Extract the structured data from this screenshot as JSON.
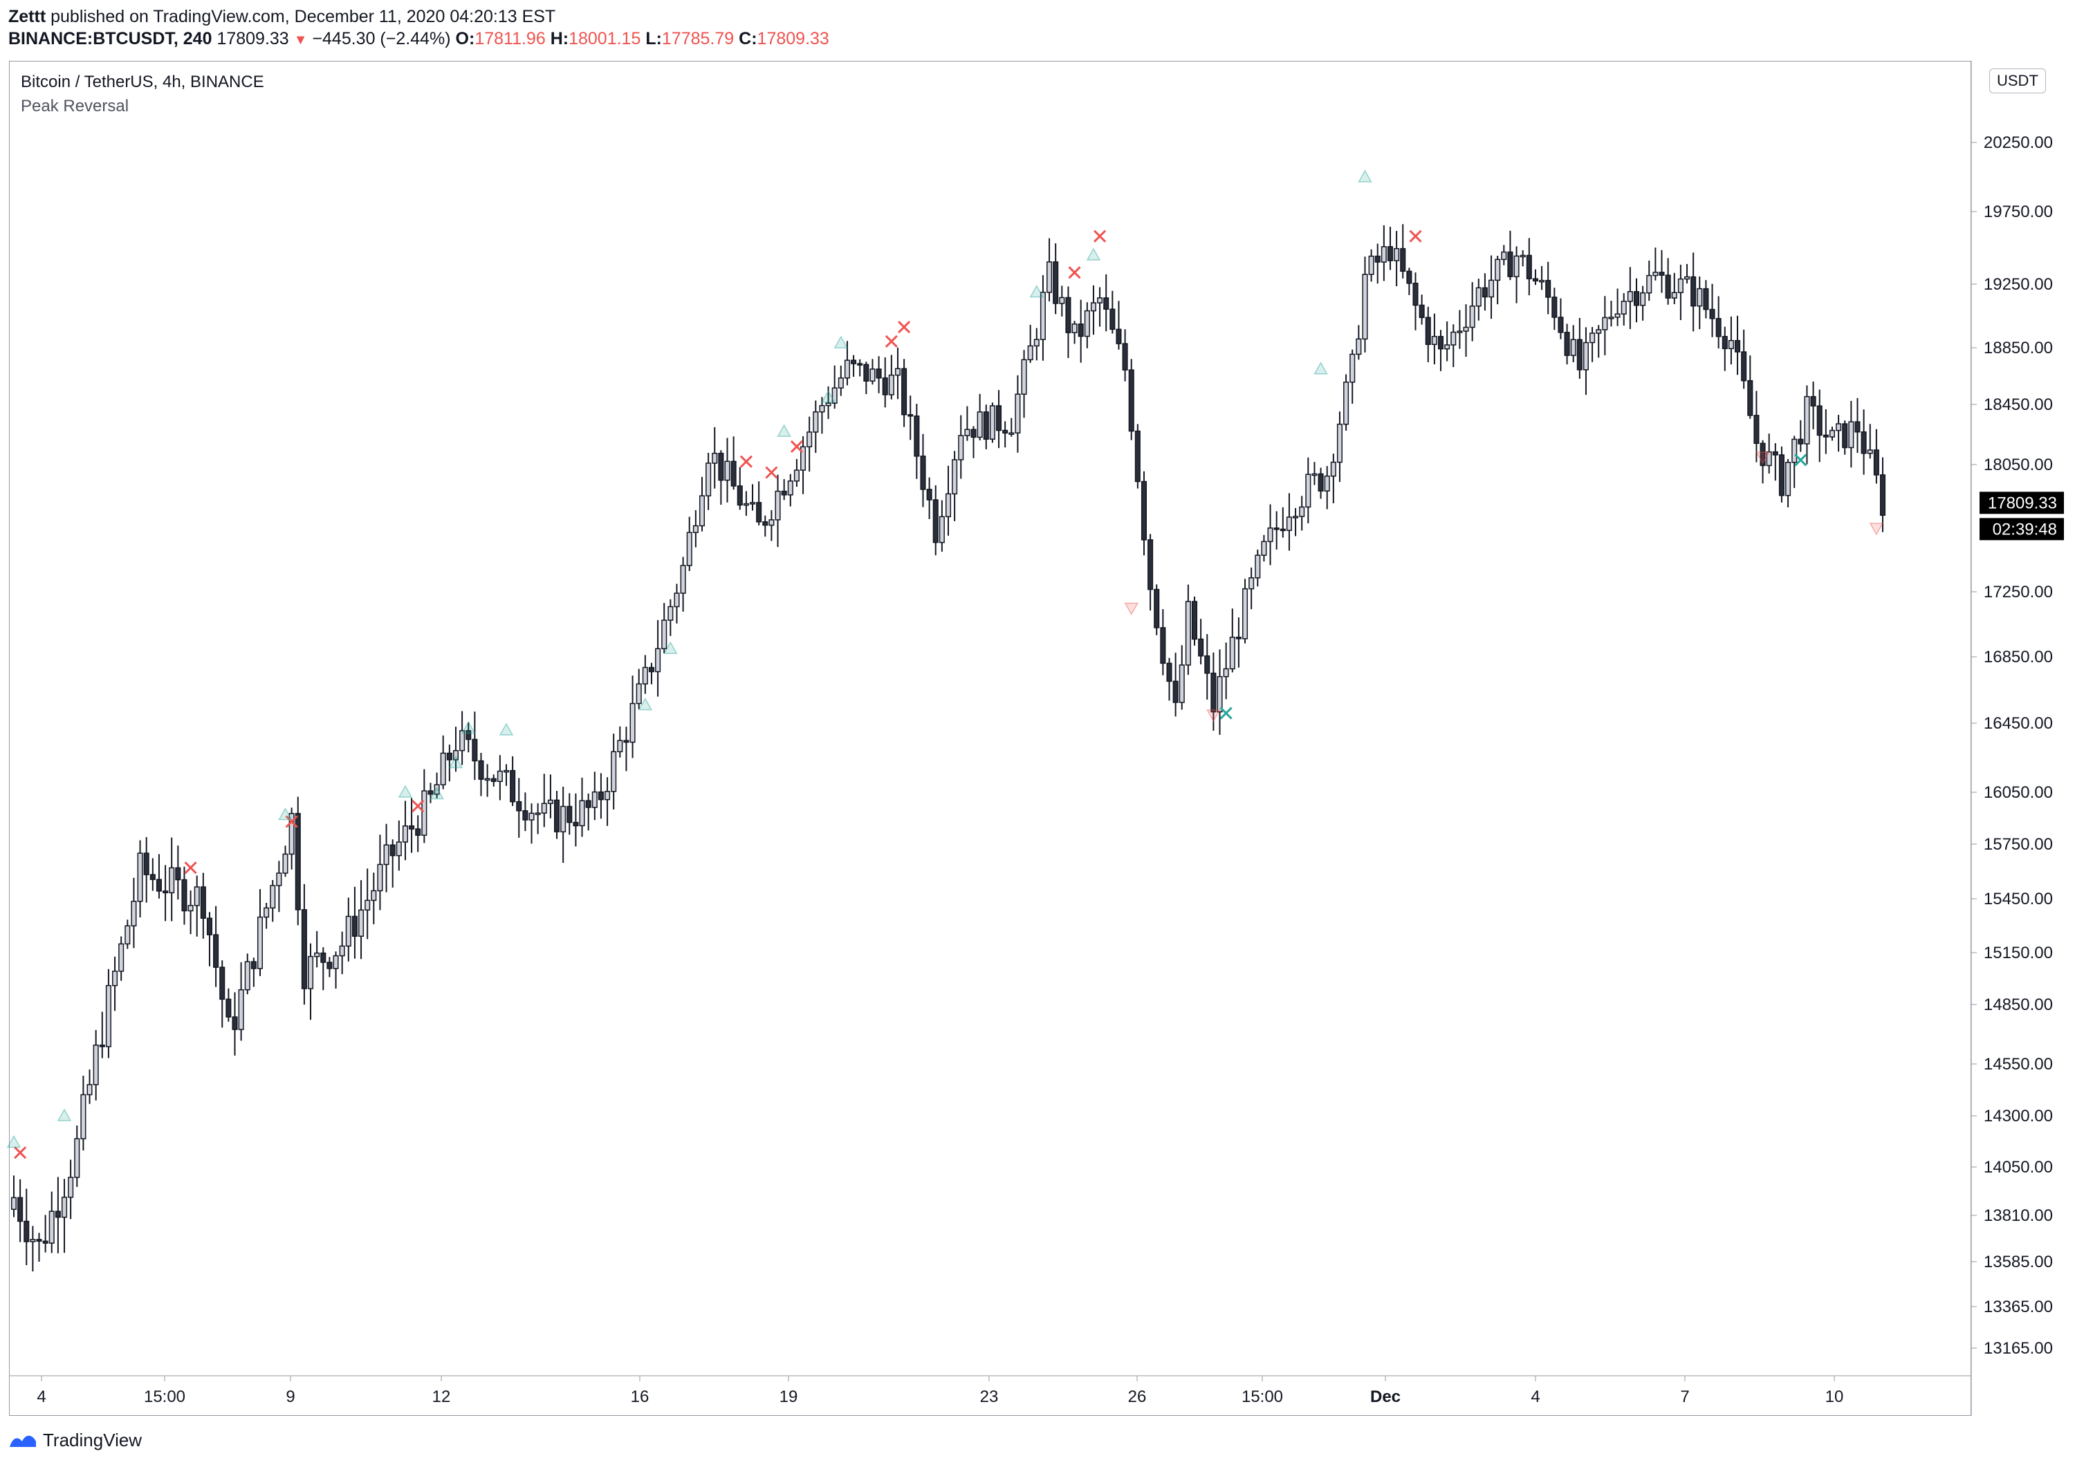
{
  "header": {
    "author": "Zettt",
    "published": "published on TradingView.com, December 11, 2020 04:20:13 EST",
    "symbol": "BINANCE:BTCUSDT, 240",
    "last": "17809.33",
    "change_arrow": "▼",
    "change": "−445.30 (−2.44%)",
    "o_label": "O:",
    "o": "17811.96",
    "h_label": "H:",
    "h": "18001.15",
    "l_label": "L:",
    "l": "17785.79",
    "c_label": "C:",
    "c": "17809.33"
  },
  "chart_title": "Bitcoin / TetherUS, 4h, BINANCE",
  "indicator": "Peak Reversal",
  "currency_button": "USDT",
  "price_label": "17809.33",
  "countdown_label": "02:39:48",
  "footer_brand": "TradingView",
  "colors": {
    "up_body": "#d1d4dc",
    "down_body": "#2a2e39",
    "wick": "#131722",
    "marker_green": "#26a69a",
    "marker_red": "#ef5350"
  },
  "chart_data": {
    "type": "candlestick",
    "title": "Bitcoin / TetherUS, 4h, BINANCE",
    "y_ticks": [
      "20250.00",
      "19750.00",
      "19250.00",
      "18850.00",
      "18450.00",
      "18050.00",
      "17250.00",
      "16850.00",
      "16450.00",
      "16050.00",
      "15750.00",
      "15450.00",
      "15150.00",
      "14850.00",
      "14550.00",
      "14300.00",
      "14050.00",
      "13810.00",
      "13585.00",
      "13365.00",
      "13165.00"
    ],
    "x_ticks": [
      "4",
      "15:00",
      "9",
      "12",
      "16",
      "19",
      "23",
      "26",
      "15:00",
      "Dec",
      "4",
      "7",
      "10"
    ],
    "last_price": 17809.33,
    "anchor_points": [
      {
        "i": 0,
        "p": 13900
      },
      {
        "i": 4,
        "p": 13650
      },
      {
        "i": 10,
        "p": 14150
      },
      {
        "i": 20,
        "p": 15600
      },
      {
        "i": 26,
        "p": 15500
      },
      {
        "i": 30,
        "p": 15450
      },
      {
        "i": 34,
        "p": 14700
      },
      {
        "i": 36,
        "p": 14900
      },
      {
        "i": 40,
        "p": 15400
      },
      {
        "i": 44,
        "p": 15900
      },
      {
        "i": 46,
        "p": 15050
      },
      {
        "i": 52,
        "p": 15200
      },
      {
        "i": 60,
        "p": 15700
      },
      {
        "i": 66,
        "p": 16000
      },
      {
        "i": 70,
        "p": 16350
      },
      {
        "i": 76,
        "p": 16150
      },
      {
        "i": 84,
        "p": 15900
      },
      {
        "i": 92,
        "p": 15950
      },
      {
        "i": 100,
        "p": 16700
      },
      {
        "i": 106,
        "p": 17400
      },
      {
        "i": 110,
        "p": 18150
      },
      {
        "i": 114,
        "p": 17900
      },
      {
        "i": 118,
        "p": 17650
      },
      {
        "i": 124,
        "p": 18100
      },
      {
        "i": 128,
        "p": 18450
      },
      {
        "i": 132,
        "p": 18700
      },
      {
        "i": 140,
        "p": 18600
      },
      {
        "i": 146,
        "p": 17650
      },
      {
        "i": 150,
        "p": 18300
      },
      {
        "i": 158,
        "p": 18350
      },
      {
        "i": 164,
        "p": 19300
      },
      {
        "i": 168,
        "p": 18900
      },
      {
        "i": 172,
        "p": 19150
      },
      {
        "i": 176,
        "p": 18700
      },
      {
        "i": 180,
        "p": 17300
      },
      {
        "i": 184,
        "p": 16500
      },
      {
        "i": 186,
        "p": 17100
      },
      {
        "i": 190,
        "p": 16550
      },
      {
        "i": 194,
        "p": 17050
      },
      {
        "i": 198,
        "p": 17500
      },
      {
        "i": 202,
        "p": 17800
      },
      {
        "i": 208,
        "p": 18000
      },
      {
        "i": 212,
        "p": 18700
      },
      {
        "i": 214,
        "p": 19300
      },
      {
        "i": 218,
        "p": 19500
      },
      {
        "i": 222,
        "p": 19100
      },
      {
        "i": 226,
        "p": 18800
      },
      {
        "i": 232,
        "p": 19200
      },
      {
        "i": 238,
        "p": 19450
      },
      {
        "i": 244,
        "p": 19100
      },
      {
        "i": 248,
        "p": 18700
      },
      {
        "i": 254,
        "p": 19150
      },
      {
        "i": 260,
        "p": 19300
      },
      {
        "i": 266,
        "p": 19200
      },
      {
        "i": 272,
        "p": 18900
      },
      {
        "i": 276,
        "p": 18200
      },
      {
        "i": 280,
        "p": 17950
      },
      {
        "i": 284,
        "p": 18400
      },
      {
        "i": 288,
        "p": 18200
      },
      {
        "i": 292,
        "p": 18300
      },
      {
        "i": 296,
        "p": 17809
      }
    ],
    "markers": [
      {
        "i": 1,
        "p": 14120,
        "type": "x-red"
      },
      {
        "i": 0,
        "p": 14170,
        "type": "tri-up-green"
      },
      {
        "i": 8,
        "p": 14300,
        "type": "tri-up-green"
      },
      {
        "i": 28,
        "p": 15620,
        "type": "x-red"
      },
      {
        "i": 44,
        "p": 15880,
        "type": "x-red"
      },
      {
        "i": 43,
        "p": 15920,
        "type": "tri-up-green"
      },
      {
        "i": 64,
        "p": 15970,
        "type": "x-red"
      },
      {
        "i": 62,
        "p": 16050,
        "type": "tri-up-green"
      },
      {
        "i": 67,
        "p": 16040,
        "type": "tri-up-green"
      },
      {
        "i": 70,
        "p": 16220,
        "type": "tri-up-green"
      },
      {
        "i": 72,
        "p": 16420,
        "type": "tri-up-green"
      },
      {
        "i": 78,
        "p": 16410,
        "type": "tri-up-green"
      },
      {
        "i": 100,
        "p": 16560,
        "type": "tri-up-green"
      },
      {
        "i": 104,
        "p": 16900,
        "type": "tri-up-green"
      },
      {
        "i": 116,
        "p": 18070,
        "type": "x-red"
      },
      {
        "i": 120,
        "p": 18000,
        "type": "x-red"
      },
      {
        "i": 122,
        "p": 18270,
        "type": "tri-up-green"
      },
      {
        "i": 124,
        "p": 18170,
        "type": "x-red"
      },
      {
        "i": 129,
        "p": 18500,
        "type": "tri-up-green"
      },
      {
        "i": 131,
        "p": 18880,
        "type": "tri-up-green"
      },
      {
        "i": 139,
        "p": 18890,
        "type": "x-red"
      },
      {
        "i": 141,
        "p": 18980,
        "type": "x-red"
      },
      {
        "i": 162,
        "p": 19200,
        "type": "tri-up-green"
      },
      {
        "i": 168,
        "p": 19330,
        "type": "x-red"
      },
      {
        "i": 171,
        "p": 19450,
        "type": "tri-up-green"
      },
      {
        "i": 172,
        "p": 19580,
        "type": "x-red"
      },
      {
        "i": 177,
        "p": 17150,
        "type": "tri-down-red"
      },
      {
        "i": 190,
        "p": 16500,
        "type": "tri-down-red"
      },
      {
        "i": 192,
        "p": 16510,
        "type": "x-green"
      },
      {
        "i": 207,
        "p": 18700,
        "type": "tri-up-green"
      },
      {
        "i": 214,
        "p": 20000,
        "type": "tri-up-green"
      },
      {
        "i": 222,
        "p": 19580,
        "type": "x-red"
      },
      {
        "i": 277,
        "p": 18100,
        "type": "tri-down-red"
      },
      {
        "i": 283,
        "p": 18080,
        "type": "x-green"
      },
      {
        "i": 295,
        "p": 17650,
        "type": "tri-down-red"
      }
    ]
  }
}
